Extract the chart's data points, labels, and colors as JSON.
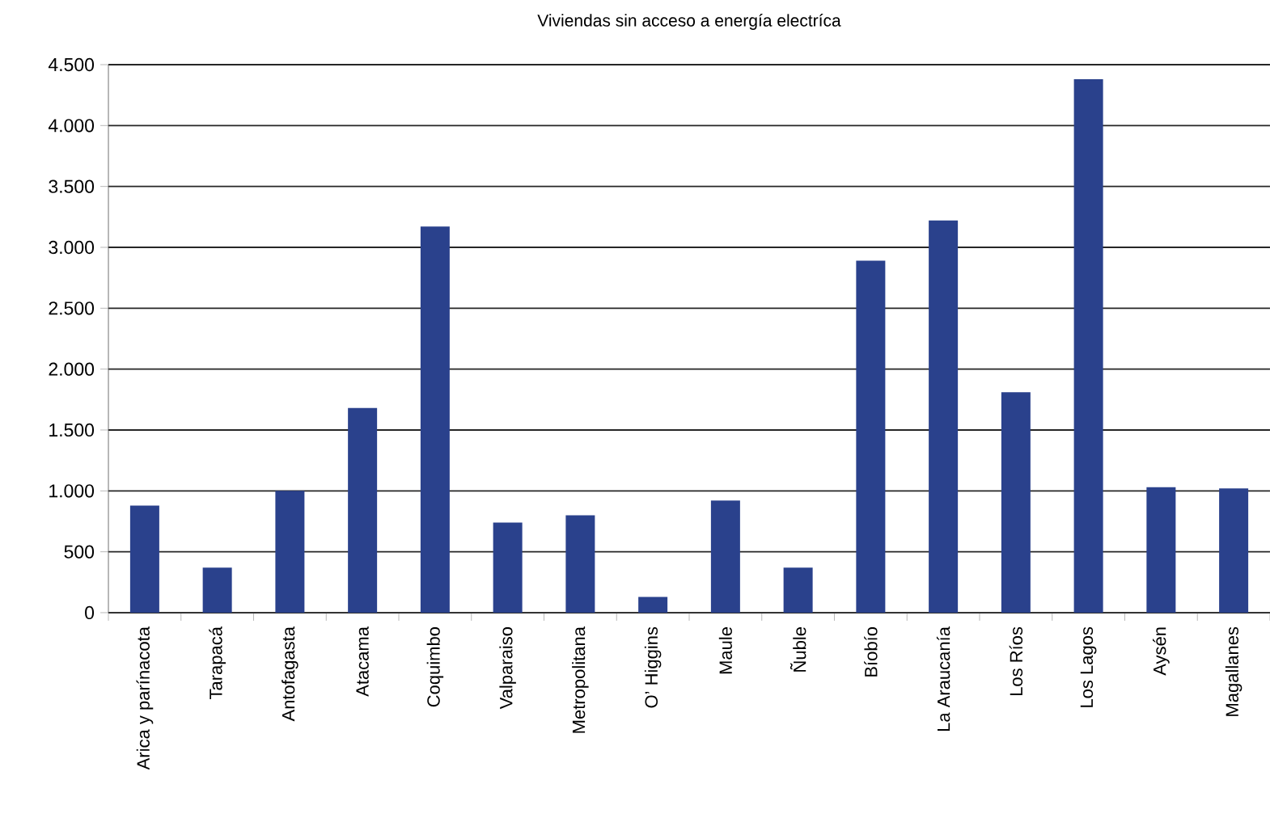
{
  "chart_data": {
    "type": "bar",
    "title": "Viviendas sin acceso a energía electríca",
    "categories": [
      "Arica y parínacota",
      "Tarapacá",
      "Antofagasta",
      "Atacama",
      "Coquimbo",
      "Valparaiso",
      "Metropolitana",
      "O’ Higgins",
      "Maule",
      "Ñuble",
      "Bíobío",
      "La Araucanía",
      "Los Ríos",
      "Los Lagos",
      "Aysén",
      "Magallanes"
    ],
    "values": [
      880,
      370,
      1000,
      1680,
      3170,
      740,
      800,
      130,
      920,
      370,
      2890,
      3220,
      1810,
      4380,
      1030,
      1020
    ],
    "color": "#2a418c",
    "ylim": [
      0,
      4500
    ],
    "yticks": [
      0,
      {
        "value": 500,
        "label": "500"
      },
      {
        "value": 1000,
        "label": "1.000"
      },
      {
        "value": 1500,
        "label": "1.500"
      },
      {
        "value": 2000,
        "label": "2.000"
      },
      {
        "value": 2500,
        "label": "2.500"
      },
      {
        "value": 3000,
        "label": "3.000"
      },
      {
        "value": 3500,
        "label": "3.500"
      },
      {
        "value": 4000,
        "label": "4.000"
      },
      {
        "value": 4500,
        "label": "4.500"
      }
    ],
    "grid": "y"
  }
}
